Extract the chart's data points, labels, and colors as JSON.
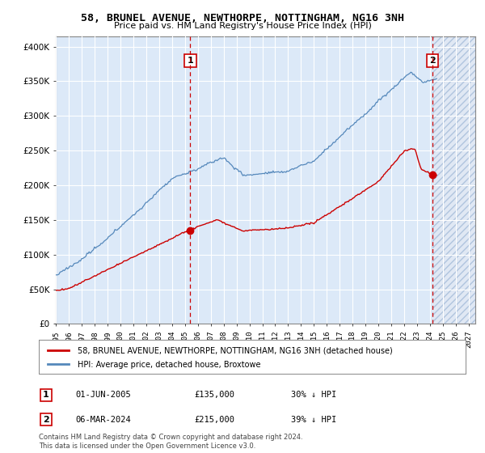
{
  "title": "58, BRUNEL AVENUE, NEWTHORPE, NOTTINGHAM, NG16 3NH",
  "subtitle": "Price paid vs. HM Land Registry's House Price Index (HPI)",
  "y_values": [
    0,
    50000,
    100000,
    150000,
    200000,
    250000,
    300000,
    350000,
    400000
  ],
  "ylim": [
    0,
    415000
  ],
  "xlim_start": 1995.0,
  "xlim_end": 2027.5,
  "transaction1": {
    "date": "01-JUN-2005",
    "price": 135000,
    "hpi_pct": "30% ↓ HPI",
    "label": "1",
    "year": 2005.42
  },
  "transaction2": {
    "date": "06-MAR-2024",
    "price": 215000,
    "hpi_pct": "39% ↓ HPI",
    "label": "2",
    "year": 2024.17
  },
  "legend_red": "58, BRUNEL AVENUE, NEWTHORPE, NOTTINGHAM, NG16 3NH (detached house)",
  "legend_blue": "HPI: Average price, detached house, Broxtowe",
  "footer": "Contains HM Land Registry data © Crown copyright and database right 2024.\nThis data is licensed under the Open Government Licence v3.0.",
  "bg_color": "#dce9f8",
  "hatch_bg_color": "#e8eef5",
  "grid_color": "#ffffff",
  "red_line_color": "#cc0000",
  "blue_line_color": "#5588bb"
}
